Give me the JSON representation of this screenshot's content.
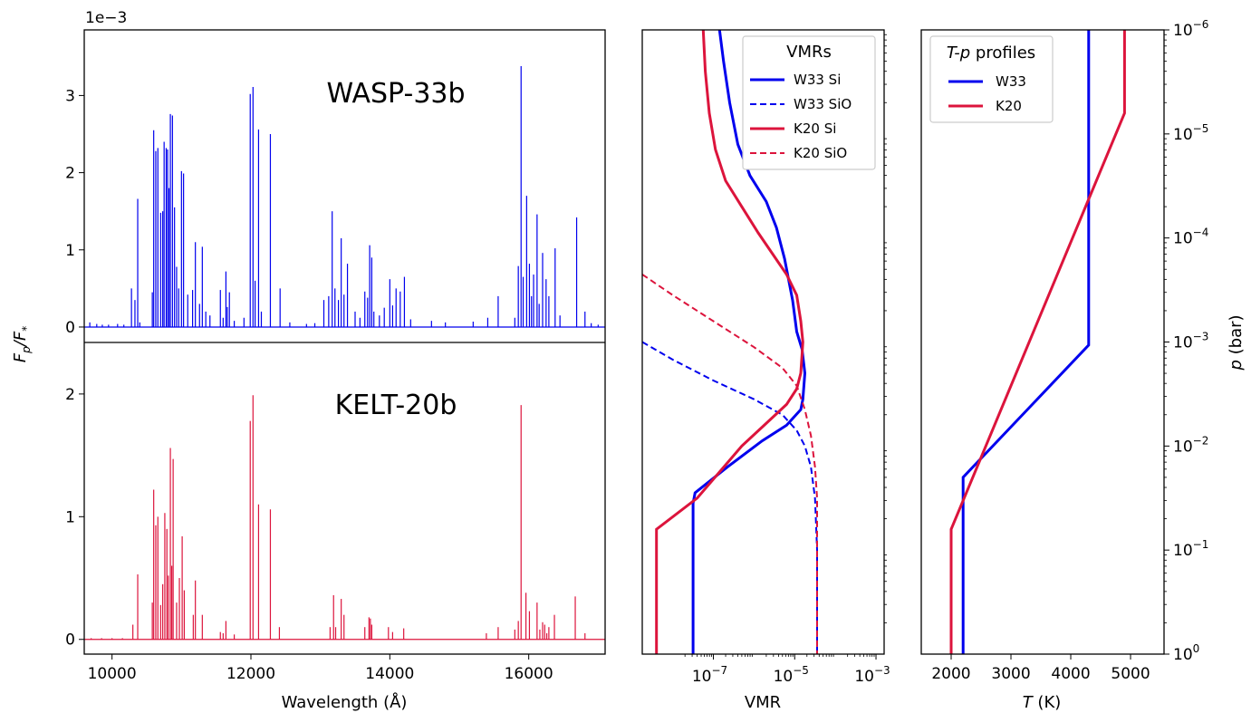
{
  "chart_data": [
    {
      "type": "line",
      "panel": "spectrum",
      "title": "WASP-33b",
      "xlabel": "Wavelength (Å)",
      "ylabel_main": "F",
      "ylabel_sub": "p",
      "ylabel_sep": "/F",
      "ylabel_sub2": "*",
      "offset_text": "1e−3",
      "xlim": [
        9600,
        17100
      ],
      "ylim": [
        -0.2,
        3.85
      ],
      "x_ticks": [
        10000,
        12000,
        14000,
        16000
      ],
      "x_tick_labels": [
        "10000",
        "12000",
        "14000",
        "16000"
      ],
      "y_ticks": [
        0,
        1,
        2,
        3
      ],
      "y_tick_labels": [
        "0",
        "1",
        "2",
        "3"
      ],
      "color": "#0000ee",
      "lines": [
        [
          9680,
          0.06
        ],
        [
          9780,
          0.04
        ],
        [
          9860,
          0.03
        ],
        [
          9950,
          0.03
        ],
        [
          10080,
          0.04
        ],
        [
          10170,
          0.03
        ],
        [
          10280,
          0.5
        ],
        [
          10330,
          0.35
        ],
        [
          10370,
          1.66
        ],
        [
          10400,
          0.06
        ],
        [
          10580,
          0.45
        ],
        [
          10600,
          2.55
        ],
        [
          10630,
          2.28
        ],
        [
          10660,
          2.32
        ],
        [
          10700,
          1.48
        ],
        [
          10730,
          1.5
        ],
        [
          10750,
          2.4
        ],
        [
          10780,
          2.32
        ],
        [
          10800,
          2.3
        ],
        [
          10820,
          1.8
        ],
        [
          10840,
          2.76
        ],
        [
          10870,
          2.74
        ],
        [
          10900,
          1.55
        ],
        [
          10930,
          0.78
        ],
        [
          10960,
          0.5
        ],
        [
          11000,
          2.02
        ],
        [
          11030,
          1.99
        ],
        [
          11090,
          0.42
        ],
        [
          11160,
          0.48
        ],
        [
          11200,
          1.1
        ],
        [
          11260,
          0.3
        ],
        [
          11300,
          1.04
        ],
        [
          11350,
          0.2
        ],
        [
          11410,
          0.15
        ],
        [
          11560,
          0.48
        ],
        [
          11600,
          0.12
        ],
        [
          11640,
          0.72
        ],
        [
          11660,
          0.26
        ],
        [
          11690,
          0.45
        ],
        [
          11760,
          0.08
        ],
        [
          11900,
          0.12
        ],
        [
          11990,
          3.02
        ],
        [
          12030,
          3.11
        ],
        [
          12060,
          0.6
        ],
        [
          12110,
          2.56
        ],
        [
          12150,
          0.2
        ],
        [
          12280,
          2.5
        ],
        [
          12420,
          0.5
        ],
        [
          12560,
          0.06
        ],
        [
          12800,
          0.04
        ],
        [
          12920,
          0.05
        ],
        [
          13050,
          0.35
        ],
        [
          13120,
          0.4
        ],
        [
          13170,
          1.5
        ],
        [
          13210,
          0.5
        ],
        [
          13260,
          0.35
        ],
        [
          13300,
          1.15
        ],
        [
          13340,
          0.42
        ],
        [
          13390,
          0.82
        ],
        [
          13500,
          0.2
        ],
        [
          13570,
          0.12
        ],
        [
          13640,
          0.46
        ],
        [
          13680,
          0.38
        ],
        [
          13710,
          1.06
        ],
        [
          13740,
          0.9
        ],
        [
          13770,
          0.2
        ],
        [
          13850,
          0.15
        ],
        [
          13920,
          0.25
        ],
        [
          14000,
          0.62
        ],
        [
          14040,
          0.28
        ],
        [
          14090,
          0.5
        ],
        [
          14150,
          0.46
        ],
        [
          14210,
          0.65
        ],
        [
          14300,
          0.1
        ],
        [
          14600,
          0.08
        ],
        [
          14800,
          0.06
        ],
        [
          15200,
          0.07
        ],
        [
          15410,
          0.12
        ],
        [
          15560,
          0.4
        ],
        [
          15800,
          0.12
        ],
        [
          15850,
          0.79
        ],
        [
          15890,
          3.38
        ],
        [
          15920,
          0.65
        ],
        [
          15970,
          1.7
        ],
        [
          16010,
          0.82
        ],
        [
          16040,
          0.4
        ],
        [
          16070,
          0.68
        ],
        [
          16120,
          1.46
        ],
        [
          16150,
          0.3
        ],
        [
          16200,
          0.96
        ],
        [
          16250,
          0.62
        ],
        [
          16290,
          0.4
        ],
        [
          16380,
          1.02
        ],
        [
          16450,
          0.15
        ],
        [
          16690,
          1.42
        ],
        [
          16810,
          0.2
        ],
        [
          16900,
          0.05
        ],
        [
          17000,
          0.03
        ]
      ]
    },
    {
      "type": "line",
      "panel": "spectrum",
      "title": "KELT-20b",
      "xlabel": "Wavelength (Å)",
      "xlim": [
        9600,
        17100
      ],
      "ylim": [
        -0.12,
        2.42
      ],
      "y_ticks": [
        0,
        1,
        2
      ],
      "y_tick_labels": [
        "0",
        "1",
        "2"
      ],
      "color": "#dc143c",
      "lines": [
        [
          9700,
          0.01
        ],
        [
          9850,
          0.01
        ],
        [
          10000,
          0.01
        ],
        [
          10150,
          0.01
        ],
        [
          10300,
          0.12
        ],
        [
          10370,
          0.53
        ],
        [
          10580,
          0.3
        ],
        [
          10600,
          1.22
        ],
        [
          10630,
          0.93
        ],
        [
          10660,
          1.0
        ],
        [
          10700,
          0.28
        ],
        [
          10730,
          0.45
        ],
        [
          10760,
          1.03
        ],
        [
          10790,
          0.9
        ],
        [
          10810,
          0.52
        ],
        [
          10840,
          1.56
        ],
        [
          10860,
          0.6
        ],
        [
          10880,
          1.47
        ],
        [
          10930,
          0.3
        ],
        [
          10970,
          0.5
        ],
        [
          11010,
          0.84
        ],
        [
          11040,
          0.4
        ],
        [
          11170,
          0.2
        ],
        [
          11200,
          0.48
        ],
        [
          11300,
          0.2
        ],
        [
          11560,
          0.06
        ],
        [
          11600,
          0.05
        ],
        [
          11640,
          0.15
        ],
        [
          11760,
          0.04
        ],
        [
          11990,
          1.78
        ],
        [
          12030,
          1.99
        ],
        [
          12110,
          1.1
        ],
        [
          12280,
          1.06
        ],
        [
          12410,
          0.1
        ],
        [
          13140,
          0.1
        ],
        [
          13190,
          0.36
        ],
        [
          13220,
          0.1
        ],
        [
          13300,
          0.33
        ],
        [
          13340,
          0.2
        ],
        [
          13640,
          0.1
        ],
        [
          13700,
          0.18
        ],
        [
          13720,
          0.17
        ],
        [
          13740,
          0.12
        ],
        [
          13980,
          0.1
        ],
        [
          14040,
          0.06
        ],
        [
          14200,
          0.09
        ],
        [
          15390,
          0.05
        ],
        [
          15560,
          0.1
        ],
        [
          15800,
          0.08
        ],
        [
          15850,
          0.15
        ],
        [
          15890,
          1.91
        ],
        [
          15960,
          0.38
        ],
        [
          16010,
          0.23
        ],
        [
          16120,
          0.3
        ],
        [
          16160,
          0.08
        ],
        [
          16200,
          0.14
        ],
        [
          16230,
          0.12
        ],
        [
          16260,
          0.05
        ],
        [
          16290,
          0.1
        ],
        [
          16370,
          0.2
        ],
        [
          16670,
          0.35
        ],
        [
          16810,
          0.05
        ]
      ]
    },
    {
      "type": "line",
      "panel": "vmr",
      "xlabel": "VMR",
      "x_log": true,
      "y_log": true,
      "xlim_log10": [
        -8.75,
        -2.8
      ],
      "ylim_log10": [
        0,
        -6
      ],
      "x_ticks_log10": [
        -7,
        -5,
        -3
      ],
      "x_tick_labels": [
        "10",
        "10",
        "10"
      ],
      "x_tick_exps": [
        "−7",
        "−5",
        "−3"
      ],
      "legend": {
        "title": "VMRs",
        "position": "upper right",
        "entries": [
          "W33 Si",
          "W33 SiO",
          "K20 Si",
          "K20 SiO"
        ]
      },
      "series": [
        {
          "name": "W33 Si",
          "color": "#0000ee",
          "dash": "solid",
          "points_log10": [
            [
              -6.85,
              -6.0
            ],
            [
              -6.75,
              -5.7
            ],
            [
              -6.6,
              -5.3
            ],
            [
              -6.4,
              -4.9
            ],
            [
              -6.1,
              -4.6
            ],
            [
              -5.7,
              -4.35
            ],
            [
              -5.45,
              -4.1
            ],
            [
              -5.25,
              -3.8
            ],
            [
              -5.05,
              -3.4
            ],
            [
              -4.95,
              -3.1
            ],
            [
              -4.82,
              -2.93
            ],
            [
              -4.75,
              -2.7
            ],
            [
              -4.8,
              -2.45
            ],
            [
              -4.85,
              -2.35
            ],
            [
              -5.2,
              -2.2
            ],
            [
              -5.8,
              -2.05
            ],
            [
              -6.65,
              -1.8
            ],
            [
              -7.45,
              -1.55
            ],
            [
              -7.5,
              -1.45
            ],
            [
              -7.5,
              0.0
            ]
          ]
        },
        {
          "name": "W33 SiO",
          "color": "#0000ee",
          "dash": "dashed",
          "points_log10": [
            [
              -8.75,
              -3.0
            ],
            [
              -8.0,
              -2.83
            ],
            [
              -7.0,
              -2.63
            ],
            [
              -6.0,
              -2.45
            ],
            [
              -5.3,
              -2.3
            ],
            [
              -4.95,
              -2.15
            ],
            [
              -4.75,
              -2.0
            ],
            [
              -4.6,
              -1.8
            ],
            [
              -4.5,
              -1.5
            ],
            [
              -4.45,
              -1.0
            ],
            [
              -4.45,
              0.0
            ]
          ]
        },
        {
          "name": "K20 Si",
          "color": "#dc143c",
          "dash": "solid",
          "points_log10": [
            [
              -7.25,
              -6.0
            ],
            [
              -7.2,
              -5.6
            ],
            [
              -7.1,
              -5.2
            ],
            [
              -6.95,
              -4.85
            ],
            [
              -6.7,
              -4.55
            ],
            [
              -6.3,
              -4.3
            ],
            [
              -5.9,
              -4.05
            ],
            [
              -5.55,
              -3.85
            ],
            [
              -5.2,
              -3.65
            ],
            [
              -4.95,
              -3.45
            ],
            [
              -4.85,
              -3.2
            ],
            [
              -4.8,
              -3.0
            ],
            [
              -4.85,
              -2.7
            ],
            [
              -4.95,
              -2.55
            ],
            [
              -5.2,
              -2.4
            ],
            [
              -5.75,
              -2.2
            ],
            [
              -6.3,
              -2.0
            ],
            [
              -6.85,
              -1.75
            ],
            [
              -7.4,
              -1.5
            ],
            [
              -8.4,
              -1.2
            ],
            [
              -8.4,
              0.0
            ]
          ]
        },
        {
          "name": "K20 SiO",
          "color": "#dc143c",
          "dash": "dashed",
          "points_log10": [
            [
              -8.75,
              -3.65
            ],
            [
              -8.0,
              -3.45
            ],
            [
              -7.0,
              -3.2
            ],
            [
              -6.0,
              -2.95
            ],
            [
              -5.3,
              -2.75
            ],
            [
              -4.95,
              -2.58
            ],
            [
              -4.75,
              -2.35
            ],
            [
              -4.6,
              -2.1
            ],
            [
              -4.5,
              -1.8
            ],
            [
              -4.45,
              -1.5
            ],
            [
              -4.45,
              0.0
            ]
          ]
        }
      ]
    },
    {
      "type": "line",
      "panel": "tp",
      "xlabel": "T (K)",
      "xlabel_italic": "T",
      "xlabel_rest": " (K)",
      "ylabel_italic": "p",
      "ylabel_rest": " (bar)",
      "xlim": [
        1500,
        5560
      ],
      "ylim_log10": [
        0,
        -6
      ],
      "x_ticks": [
        2000,
        3000,
        4000,
        5000
      ],
      "x_tick_labels": [
        "2000",
        "3000",
        "4000",
        "5000"
      ],
      "y_ticks_log10": [
        0,
        -1,
        -2,
        -3,
        -4,
        -5,
        -6
      ],
      "y_tick_labels": [
        "10",
        "10",
        "10",
        "10",
        "10",
        "10",
        "10"
      ],
      "y_tick_exps": [
        "0",
        "−1",
        "−2",
        "−3",
        "−4",
        "−5",
        "−6"
      ],
      "legend": {
        "title_italic": "T-p",
        "title_rest": " profiles",
        "position": "upper left",
        "entries": [
          "W33",
          "K20"
        ]
      },
      "series": [
        {
          "name": "W33",
          "color": "#0000ee",
          "points_T_log10p": [
            [
              2200,
              0.0
            ],
            [
              2200,
              -1.7
            ],
            [
              4300,
              -2.97
            ],
            [
              4300,
              -6.0
            ]
          ]
        },
        {
          "name": "K20",
          "color": "#dc143c",
          "points_T_log10p": [
            [
              2000,
              0.0
            ],
            [
              2000,
              -1.2
            ],
            [
              4900,
              -5.2
            ],
            [
              4900,
              -6.0
            ]
          ]
        }
      ]
    }
  ]
}
